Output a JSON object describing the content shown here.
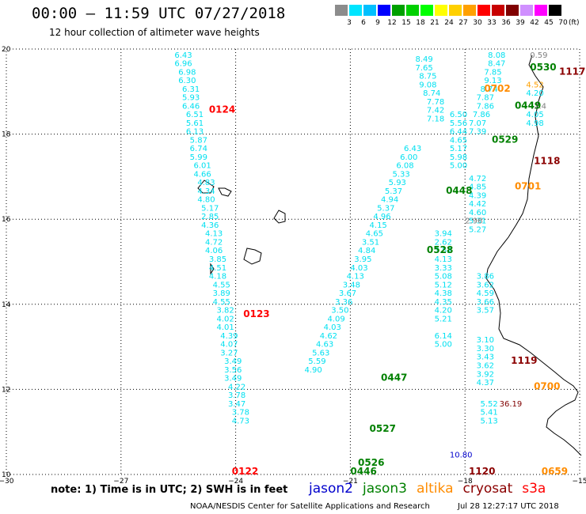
{
  "title": "00:00 – 11:59 UTC 07/27/2018",
  "subtitle": "12 hour collection of altimeter wave heights",
  "legend": {
    "unit": "(ft)",
    "bins": [
      {
        "label": "3",
        "color": "#8c8c8c"
      },
      {
        "label": "6",
        "color": "#00e5ff"
      },
      {
        "label": "9",
        "color": "#00c0ff"
      },
      {
        "label": "12",
        "color": "#0000ff"
      },
      {
        "label": "15",
        "color": "#00a000"
      },
      {
        "label": "18",
        "color": "#00d000"
      },
      {
        "label": "21",
        "color": "#00ff00"
      },
      {
        "label": "24",
        "color": "#ffff00"
      },
      {
        "label": "27",
        "color": "#ffd000"
      },
      {
        "label": "30",
        "color": "#ffa000"
      },
      {
        "label": "33",
        "color": "#ff0000"
      },
      {
        "label": "36",
        "color": "#c80000"
      },
      {
        "label": "39",
        "color": "#800000"
      },
      {
        "label": "42",
        "color": "#d090ff"
      },
      {
        "label": "45",
        "color": "#ff00ff"
      },
      {
        "label": "70",
        "color": "#000000"
      }
    ]
  },
  "axes": {
    "lon_ticks": [
      "−30",
      "−27",
      "−24",
      "−21",
      "−18",
      "−15"
    ],
    "lat_ticks": [
      "10",
      "12",
      "14",
      "16",
      "18",
      "20"
    ]
  },
  "colors": {
    "jason2": "#0000cc",
    "jason3": "#008000",
    "altika": "#ff8c00",
    "cryosat": "#8b0000",
    "s3a": "#ff0000",
    "cyan": "#00e0f0"
  },
  "passes": [
    {
      "label": "0124",
      "lat": 18.5,
      "lon": -24.7,
      "sat": "s3a"
    },
    {
      "label": "0123",
      "lat": 13.7,
      "lon": -23.8,
      "sat": "s3a"
    },
    {
      "label": "0122",
      "lat": 10.0,
      "lon": -24.1,
      "sat": "s3a"
    },
    {
      "label": "0530",
      "lat": 19.5,
      "lon": -16.3,
      "sat": "jason3"
    },
    {
      "label": "1117",
      "lat": 19.4,
      "lon": -15.3,
      "sat": "cryosat"
    },
    {
      "label": "0702",
      "lat": 19.0,
      "lon": -17.5,
      "sat": "altika"
    },
    {
      "label": "0449",
      "lat": 18.6,
      "lon": -16.7,
      "sat": "jason3"
    },
    {
      "label": "0529",
      "lat": 17.8,
      "lon": -17.3,
      "sat": "jason3"
    },
    {
      "label": "1118",
      "lat": 17.3,
      "lon": -16.2,
      "sat": "cryosat"
    },
    {
      "label": "0448",
      "lat": 16.6,
      "lon": -18.5,
      "sat": "jason3"
    },
    {
      "label": "0701",
      "lat": 16.7,
      "lon": -16.7,
      "sat": "altika"
    },
    {
      "label": "0528",
      "lat": 15.2,
      "lon": -19.0,
      "sat": "jason3"
    },
    {
      "label": "1119",
      "lat": 12.6,
      "lon": -16.8,
      "sat": "cryosat"
    },
    {
      "label": "0447",
      "lat": 12.2,
      "lon": -20.2,
      "sat": "jason3"
    },
    {
      "label": "0700",
      "lat": 12.0,
      "lon": -16.2,
      "sat": "altika"
    },
    {
      "label": "0527",
      "lat": 11.0,
      "lon": -20.5,
      "sat": "jason3"
    },
    {
      "label": "0526",
      "lat": 10.2,
      "lon": -20.8,
      "sat": "jason3"
    },
    {
      "label": "0446",
      "lat": 10.0,
      "lon": -21.0,
      "sat": "jason3"
    },
    {
      "label": "1120",
      "lat": 10.0,
      "lon": -17.9,
      "sat": "cryosat"
    },
    {
      "label": "0659",
      "lat": 10.0,
      "lon": -16.0,
      "sat": "altika"
    }
  ],
  "tracks": [
    {
      "name": "s3a",
      "color": "#00e0f0",
      "points": [
        {
          "lat": 19.8,
          "lon": -25.6,
          "v": "6.43"
        },
        {
          "lat": 19.6,
          "lon": -25.6,
          "v": "6.96"
        },
        {
          "lat": 19.4,
          "lon": -25.5,
          "v": "6.98"
        },
        {
          "lat": 19.2,
          "lon": -25.5,
          "v": "6.30"
        },
        {
          "lat": 19.0,
          "lon": -25.4,
          "v": "6.31"
        },
        {
          "lat": 18.8,
          "lon": -25.4,
          "v": "5.93"
        },
        {
          "lat": 18.6,
          "lon": -25.4,
          "v": "6.46"
        },
        {
          "lat": 18.4,
          "lon": -25.3,
          "v": "6.51"
        },
        {
          "lat": 18.2,
          "lon": -25.3,
          "v": "5.61"
        },
        {
          "lat": 18.0,
          "lon": -25.3,
          "v": "6.13"
        },
        {
          "lat": 17.8,
          "lon": -25.2,
          "v": "5.87"
        },
        {
          "lat": 17.6,
          "lon": -25.2,
          "v": "6.74"
        },
        {
          "lat": 17.4,
          "lon": -25.2,
          "v": "5.99"
        },
        {
          "lat": 17.2,
          "lon": -25.1,
          "v": "6.01"
        },
        {
          "lat": 17.0,
          "lon": -25.1,
          "v": "4.66"
        },
        {
          "lat": 16.8,
          "lon": -25.0,
          "v": "4.83"
        },
        {
          "lat": 16.6,
          "lon": -25.0,
          "v": "4.34"
        },
        {
          "lat": 16.4,
          "lon": -25.0,
          "v": "4.80"
        },
        {
          "lat": 16.2,
          "lon": -24.9,
          "v": "5.17"
        },
        {
          "lat": 16.0,
          "lon": -24.9,
          "v": "2.85"
        },
        {
          "lat": 15.8,
          "lon": -24.9,
          "v": "4.36"
        },
        {
          "lat": 15.6,
          "lon": -24.8,
          "v": "4.13"
        },
        {
          "lat": 15.4,
          "lon": -24.8,
          "v": "4.72"
        },
        {
          "lat": 15.2,
          "lon": -24.8,
          "v": "4.06"
        },
        {
          "lat": 15.0,
          "lon": -24.7,
          "v": "3.85"
        },
        {
          "lat": 14.8,
          "lon": -24.7,
          "v": "4.51"
        },
        {
          "lat": 14.6,
          "lon": -24.7,
          "v": "4.18"
        },
        {
          "lat": 14.4,
          "lon": -24.6,
          "v": "4.55"
        },
        {
          "lat": 14.2,
          "lon": -24.6,
          "v": "3.89"
        },
        {
          "lat": 14.0,
          "lon": -24.6,
          "v": "4.55"
        },
        {
          "lat": 13.8,
          "lon": -24.5,
          "v": "3.82"
        },
        {
          "lat": 13.6,
          "lon": -24.5,
          "v": "4.02"
        },
        {
          "lat": 13.4,
          "lon": -24.5,
          "v": "4.01"
        },
        {
          "lat": 13.2,
          "lon": -24.4,
          "v": "4.39"
        },
        {
          "lat": 13.0,
          "lon": -24.4,
          "v": "4.07"
        },
        {
          "lat": 12.8,
          "lon": -24.4,
          "v": "3.27"
        },
        {
          "lat": 12.6,
          "lon": -24.3,
          "v": "3.49"
        },
        {
          "lat": 12.4,
          "lon": -24.3,
          "v": "3.56"
        },
        {
          "lat": 12.2,
          "lon": -24.3,
          "v": "3.49"
        },
        {
          "lat": 12.0,
          "lon": -24.2,
          "v": "4.22"
        },
        {
          "lat": 11.8,
          "lon": -24.2,
          "v": "3.78"
        },
        {
          "lat": 11.6,
          "lon": -24.2,
          "v": "3.47"
        },
        {
          "lat": 11.4,
          "lon": -24.1,
          "v": "3.78"
        },
        {
          "lat": 11.2,
          "lon": -24.1,
          "v": "4.73"
        }
      ]
    },
    {
      "name": "altika",
      "color": "#00e0f0",
      "points": [
        {
          "lat": 19.7,
          "lon": -19.3,
          "v": "8.49"
        },
        {
          "lat": 19.5,
          "lon": -19.3,
          "v": "7.65"
        },
        {
          "lat": 19.3,
          "lon": -19.2,
          "v": "8.75"
        },
        {
          "lat": 19.1,
          "lon": -19.2,
          "v": "9.08"
        },
        {
          "lat": 18.9,
          "lon": -19.1,
          "v": "8.74"
        },
        {
          "lat": 18.7,
          "lon": -19.0,
          "v": "7.78"
        },
        {
          "lat": 18.5,
          "lon": -19.0,
          "v": "7.42"
        },
        {
          "lat": 18.3,
          "lon": -19.0,
          "v": "7.18"
        }
      ]
    },
    {
      "name": "jason3-right",
      "color": "#00e0f0",
      "points": [
        {
          "lat": 18.4,
          "lon": -18.4,
          "v": "6.50"
        },
        {
          "lat": 18.2,
          "lon": -18.4,
          "v": "5.56"
        },
        {
          "lat": 18.0,
          "lon": -18.4,
          "v": "6.44"
        },
        {
          "lat": 17.8,
          "lon": -18.4,
          "v": "4.65"
        },
        {
          "lat": 17.6,
          "lon": -18.4,
          "v": "5.17"
        },
        {
          "lat": 17.4,
          "lon": -18.4,
          "v": "5.98"
        },
        {
          "lat": 17.2,
          "lon": -18.4,
          "v": "5.00"
        },
        {
          "lat": 16.9,
          "lon": -17.9,
          "v": "4.72"
        },
        {
          "lat": 16.7,
          "lon": -17.9,
          "v": "4.85"
        },
        {
          "lat": 16.5,
          "lon": -17.9,
          "v": "4.39"
        },
        {
          "lat": 16.3,
          "lon": -17.9,
          "v": "4.42"
        },
        {
          "lat": 16.1,
          "lon": -17.9,
          "v": "4.60"
        },
        {
          "lat": 15.9,
          "lon": -17.9,
          "v": "5.31"
        },
        {
          "lat": 15.7,
          "lon": -17.9,
          "v": "5.27"
        },
        {
          "lat": 14.6,
          "lon": -17.7,
          "v": "3.86"
        },
        {
          "lat": 14.4,
          "lon": -17.7,
          "v": "3.62"
        },
        {
          "lat": 14.2,
          "lon": -17.7,
          "v": "4.59"
        },
        {
          "lat": 14.0,
          "lon": -17.7,
          "v": "3.66"
        },
        {
          "lat": 13.8,
          "lon": -17.7,
          "v": "3.57"
        },
        {
          "lat": 13.1,
          "lon": -17.7,
          "v": "3.10"
        },
        {
          "lat": 12.9,
          "lon": -17.7,
          "v": "3.30"
        },
        {
          "lat": 12.7,
          "lon": -17.7,
          "v": "3.43"
        },
        {
          "lat": 12.5,
          "lon": -17.7,
          "v": "3.62"
        },
        {
          "lat": 12.3,
          "lon": -17.7,
          "v": "3.92"
        },
        {
          "lat": 12.1,
          "lon": -17.7,
          "v": "4.37"
        },
        {
          "lat": 11.6,
          "lon": -17.6,
          "v": "5.52"
        },
        {
          "lat": 11.4,
          "lon": -17.6,
          "v": "5.41"
        },
        {
          "lat": 11.2,
          "lon": -17.6,
          "v": "5.13"
        }
      ]
    },
    {
      "name": "mid",
      "color": "#00e0f0",
      "points": [
        {
          "lat": 15.6,
          "lon": -18.8,
          "v": "3.94"
        },
        {
          "lat": 15.4,
          "lon": -18.8,
          "v": "2.62"
        },
        {
          "lat": 15.2,
          "lon": -18.8,
          "v": "3.52"
        },
        {
          "lat": 15.0,
          "lon": -18.8,
          "v": "4.13"
        },
        {
          "lat": 14.8,
          "lon": -18.8,
          "v": "3.33"
        },
        {
          "lat": 14.6,
          "lon": -18.8,
          "v": "5.08"
        },
        {
          "lat": 14.4,
          "lon": -18.8,
          "v": "5.12"
        },
        {
          "lat": 14.2,
          "lon": -18.8,
          "v": "4.38"
        },
        {
          "lat": 14.0,
          "lon": -18.8,
          "v": "4.35"
        },
        {
          "lat": 13.8,
          "lon": -18.8,
          "v": "4.20"
        },
        {
          "lat": 13.6,
          "lon": -18.8,
          "v": "5.21"
        },
        {
          "lat": 13.2,
          "lon": -18.8,
          "v": "6.14"
        },
        {
          "lat": 13.0,
          "lon": -18.8,
          "v": "5.00"
        }
      ]
    },
    {
      "name": "dense-left",
      "color": "#00e0f0",
      "points": [
        {
          "lat": 17.6,
          "lon": -19.6,
          "v": "6.43"
        },
        {
          "lat": 17.4,
          "lon": -19.7,
          "v": "6.00"
        },
        {
          "lat": 17.2,
          "lon": -19.8,
          "v": "6.08"
        },
        {
          "lat": 17.0,
          "lon": -19.9,
          "v": "5.33"
        },
        {
          "lat": 16.8,
          "lon": -20.0,
          "v": "5.93"
        },
        {
          "lat": 16.6,
          "lon": -20.1,
          "v": "5.37"
        },
        {
          "lat": 16.4,
          "lon": -20.2,
          "v": "4.94"
        },
        {
          "lat": 16.2,
          "lon": -20.3,
          "v": "5.37"
        },
        {
          "lat": 16.0,
          "lon": -20.4,
          "v": "4.96"
        },
        {
          "lat": 15.8,
          "lon": -20.5,
          "v": "4.15"
        },
        {
          "lat": 15.6,
          "lon": -20.6,
          "v": "4.65"
        },
        {
          "lat": 15.4,
          "lon": -20.7,
          "v": "3.51"
        },
        {
          "lat": 15.2,
          "lon": -20.8,
          "v": "4.84"
        },
        {
          "lat": 15.0,
          "lon": -20.9,
          "v": "3.95"
        },
        {
          "lat": 14.8,
          "lon": -21.0,
          "v": "4.03"
        },
        {
          "lat": 14.6,
          "lon": -21.1,
          "v": "4.13"
        },
        {
          "lat": 14.4,
          "lon": -21.2,
          "v": "3.48"
        },
        {
          "lat": 14.2,
          "lon": -21.3,
          "v": "3.67"
        },
        {
          "lat": 14.0,
          "lon": -21.4,
          "v": "3.36"
        },
        {
          "lat": 13.8,
          "lon": -21.5,
          "v": "3.50"
        },
        {
          "lat": 13.6,
          "lon": -21.6,
          "v": "4.09"
        },
        {
          "lat": 13.4,
          "lon": -21.7,
          "v": "4.03"
        },
        {
          "lat": 13.2,
          "lon": -21.8,
          "v": "4.62"
        },
        {
          "lat": 13.0,
          "lon": -21.9,
          "v": "4.63"
        },
        {
          "lat": 12.8,
          "lon": -22.0,
          "v": "5.63"
        },
        {
          "lat": 12.6,
          "lon": -22.1,
          "v": "5.59"
        },
        {
          "lat": 12.4,
          "lon": -22.2,
          "v": "4.90"
        }
      ]
    },
    {
      "name": "right-edge",
      "color": "#00e0f0",
      "points": [
        {
          "lat": 19.8,
          "lon": -17.4,
          "v": "8.08"
        },
        {
          "lat": 19.6,
          "lon": -17.4,
          "v": "8.47"
        },
        {
          "lat": 19.4,
          "lon": -17.5,
          "v": "7.85"
        },
        {
          "lat": 19.2,
          "lon": -17.5,
          "v": "9.13"
        },
        {
          "lat": 19.0,
          "lon": -17.6,
          "v": "8.74"
        },
        {
          "lat": 18.8,
          "lon": -17.7,
          "v": "7.87"
        },
        {
          "lat": 18.6,
          "lon": -17.7,
          "v": "7.86"
        },
        {
          "lat": 18.4,
          "lon": -17.8,
          "v": "7.86"
        },
        {
          "lat": 18.2,
          "lon": -17.9,
          "v": "7.07"
        },
        {
          "lat": 18.0,
          "lon": -17.9,
          "v": "7.39"
        }
      ]
    }
  ],
  "extra_labels": [
    {
      "lat": 19.8,
      "lon": -16.3,
      "v": "0.59",
      "color": "#808080"
    },
    {
      "lat": 19.1,
      "lon": -16.4,
      "v": "4.52",
      "color": "#ffa000"
    },
    {
      "lat": 18.9,
      "lon": -16.4,
      "v": "4.20",
      "color": "#00e0f0"
    },
    {
      "lat": 18.6,
      "lon": -16.2,
      "v": "2.4",
      "color": "#808080"
    },
    {
      "lat": 18.4,
      "lon": -16.4,
      "v": "4.05",
      "color": "#00e0f0"
    },
    {
      "lat": 18.2,
      "lon": -16.4,
      "v": "4.98",
      "color": "#00e0f0"
    },
    {
      "lat": 15.9,
      "lon": -18.0,
      "v": "2.96",
      "color": "#808080"
    },
    {
      "lat": 11.6,
      "lon": -17.1,
      "v": "36.19",
      "color": "#800000"
    },
    {
      "lat": 10.4,
      "lon": -18.4,
      "v": "10.80",
      "color": "#0000cc"
    }
  ],
  "footer": {
    "note": "note: 1) Time is in UTC; 2) SWH is in feet",
    "sat_names": [
      "jason2",
      "jason3",
      "altika",
      "cryosat",
      "s3a"
    ],
    "credit": "NOAA/NESDIS Center for Satellite Applications and Research",
    "timestamp": "Jul 28 12:27:17 UTC 2018"
  }
}
